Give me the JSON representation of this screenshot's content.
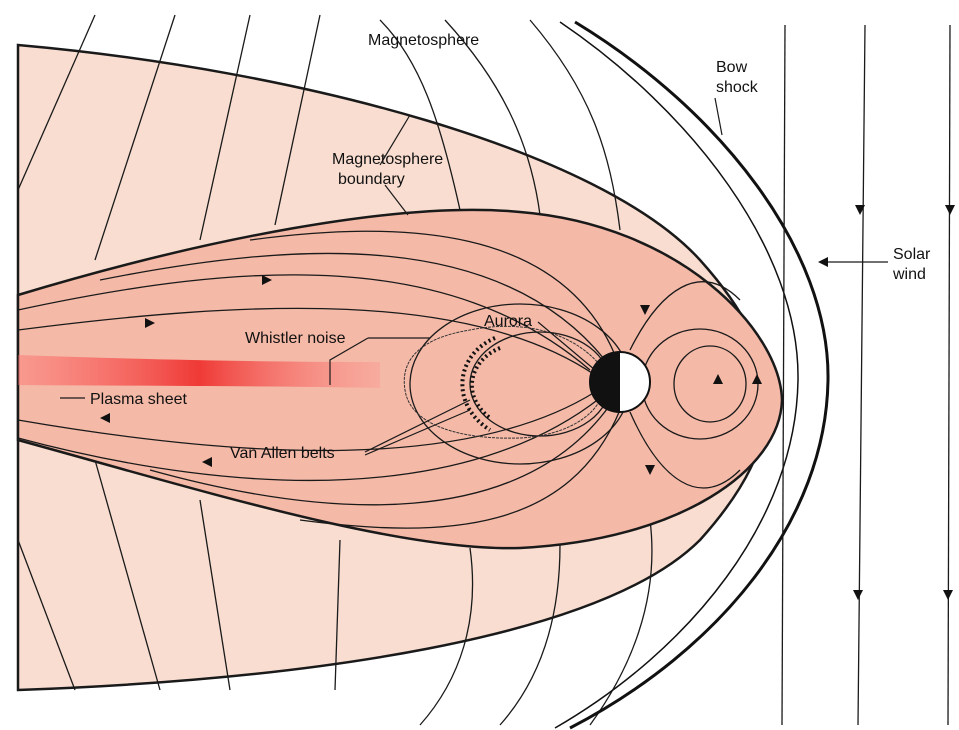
{
  "labels": {
    "magnetosphere": "Magnetosphere",
    "bow_shock": [
      "Bow",
      "shock"
    ],
    "magnetosphere_boundary": [
      "Magnetosphere",
      "boundary"
    ],
    "solar_wind": [
      "Solar",
      "wind"
    ],
    "aurora": "Aurora",
    "whistler_noise": "Whistler noise",
    "plasma_sheet": "Plasma sheet",
    "van_allen_belts": "Van Allen belts"
  }
}
